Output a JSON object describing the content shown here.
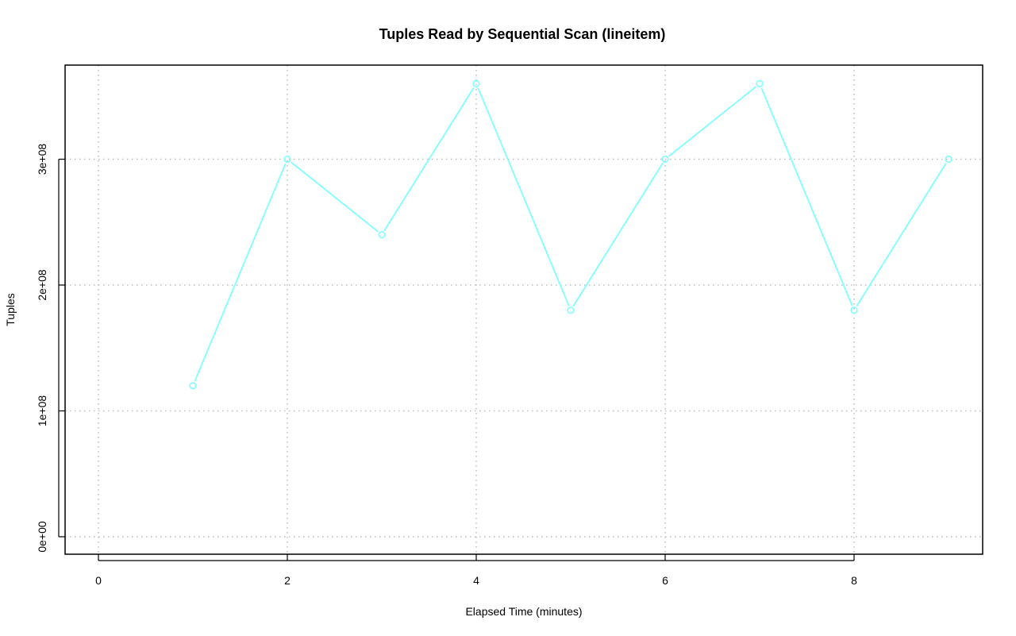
{
  "chart_data": {
    "type": "line",
    "title": "Tuples Read by Sequential Scan (lineitem)",
    "xlabel": "Elapsed Time (minutes)",
    "ylabel": "Tuples",
    "xlim": [
      0,
      9
    ],
    "ylim": [
      0,
      360000000
    ],
    "x_ticks": [
      0,
      2,
      4,
      6,
      8
    ],
    "x_tick_labels": [
      "0",
      "2",
      "4",
      "6",
      "8"
    ],
    "y_ticks": [
      0,
      100000000,
      200000000,
      300000000
    ],
    "y_tick_labels": [
      "0e+00",
      "1e+08",
      "2e+08",
      "3e+08"
    ],
    "grid": true,
    "series": [
      {
        "color": "#7fffff",
        "marker": "open-circle",
        "x": [
          1,
          2,
          3,
          4,
          5,
          6,
          7,
          8,
          9
        ],
        "y": [
          120000000,
          300000000,
          240000000,
          360000000,
          180000000,
          300000000,
          360000000,
          180000000,
          300000000
        ]
      }
    ]
  }
}
